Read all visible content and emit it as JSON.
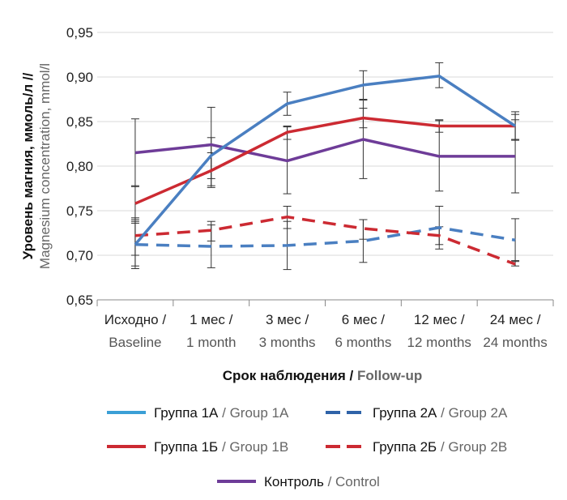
{
  "chart_data": {
    "type": "line",
    "xlabel_ru": "Срок наблюдения",
    "xlabel_en": "Follow-up",
    "ylabel_ru": "Уровень магния,  ммоль/л //",
    "ylabel_en": "Magnesium concentration, mmol/l",
    "ylim": [
      0.65,
      0.95
    ],
    "yticks": [
      "0,65",
      "0,70",
      "0,75",
      "0,80",
      "0,85",
      "0,90",
      "0,95"
    ],
    "grid": true,
    "legend_position": "bottom",
    "categories": [
      {
        "ru": "Исходно /",
        "en": "Baseline"
      },
      {
        "ru": "1 мес /",
        "en": "1 month"
      },
      {
        "ru": "3 мес /",
        "en": "3 months"
      },
      {
        "ru": "6 мес /",
        "en": "6 months"
      },
      {
        "ru": "12 мес /",
        "en": "12 months"
      },
      {
        "ru": "24 мес /",
        "en": "24 months"
      }
    ],
    "series": [
      {
        "name_ru": "Группа 1А",
        "name_en": "Group 1A",
        "color": "#4a7fc1",
        "dashed": false,
        "values": [
          0.712,
          0.812,
          0.87,
          0.891,
          0.901,
          0.845
        ],
        "err_low": [
          0.685,
          0.778,
          0.857,
          0.875,
          0.888,
          0.829
        ],
        "err_high": [
          0.738,
          0.832,
          0.883,
          0.907,
          0.916,
          0.861
        ]
      },
      {
        "name_ru": "Группа 2А",
        "name_en": "Group 2A",
        "color": "#4a7fc1",
        "dashed": true,
        "values": [
          0.712,
          0.71,
          0.711,
          0.716,
          0.731,
          0.717
        ],
        "err_low": [
          0.688,
          0.686,
          0.684,
          0.692,
          0.707,
          0.693
        ],
        "err_high": [
          0.736,
          0.734,
          0.738,
          0.74,
          0.755,
          0.741
        ]
      },
      {
        "name_ru": "Группа 1Б",
        "name_en": "Group 1B",
        "color": "#cc2a32",
        "dashed": false,
        "values": [
          0.758,
          0.795,
          0.838,
          0.854,
          0.845,
          0.845
        ],
        "err_low": [
          0.74,
          0.776,
          0.83,
          0.843,
          0.838,
          0.83
        ],
        "err_high": [
          0.778,
          0.815,
          0.845,
          0.865,
          0.852,
          0.858
        ]
      },
      {
        "name_ru": "Группа 2Б",
        "name_en": "Group 2B",
        "color": "#cc2a32",
        "dashed": true,
        "values": [
          0.722,
          0.728,
          0.743,
          0.73,
          0.722,
          0.69
        ],
        "err_low": [
          0.7,
          0.716,
          0.73,
          0.718,
          0.712,
          0.688
        ],
        "err_high": [
          0.742,
          0.738,
          0.755,
          0.74,
          0.732,
          0.694
        ]
      },
      {
        "name_ru": "Контроль",
        "name_en": "Control",
        "color": "#6e3c98",
        "dashed": false,
        "values": [
          0.815,
          0.824,
          0.806,
          0.83,
          0.811,
          0.811
        ],
        "err_low": [
          0.777,
          0.786,
          0.769,
          0.786,
          0.772,
          0.77
        ],
        "err_high": [
          0.853,
          0.866,
          0.844,
          0.874,
          0.851,
          0.852
        ]
      }
    ]
  }
}
